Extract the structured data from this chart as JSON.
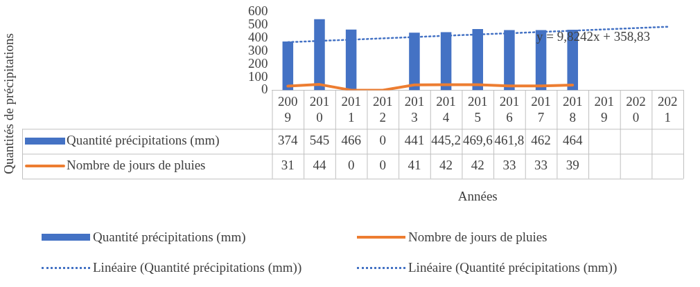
{
  "chart_data": {
    "type": "bar",
    "xlabel": "Années",
    "categories": [
      "2009",
      "2010",
      "2011",
      "2012",
      "2013",
      "2014",
      "2015",
      "2016",
      "2017",
      "2018",
      "2019",
      "2020",
      "2021"
    ],
    "series": [
      {
        "name": "Quantité précipitations (mm)",
        "color": "#4472c4",
        "values": [
          374,
          545,
          466,
          0,
          441,
          445.2,
          469.6,
          461.8,
          462,
          464,
          null,
          null,
          null
        ],
        "value_labels": [
          "374",
          "545",
          "466",
          "0",
          "441",
          "445,2",
          "469,6",
          "461,8",
          "462",
          "464",
          null,
          null,
          null
        ]
      },
      {
        "name": "Nombre de jours de pluies",
        "type": "line",
        "color": "#ed7d31",
        "line_style": "solid",
        "values": [
          31,
          44,
          0,
          0,
          41,
          42,
          42,
          33,
          33,
          39,
          null,
          null,
          null
        ],
        "value_labels": [
          "31",
          "44",
          "0",
          "0",
          "41",
          "42",
          "42",
          "33",
          "33",
          "39",
          null,
          null,
          null
        ]
      },
      {
        "name": "Linéaire (Quantité précipitations (mm))",
        "type": "line",
        "color": "#4472c4",
        "line_style": "dotted",
        "values": [
          369,
          378,
          388,
          398,
          408,
          418,
          428,
          437,
          447,
          457,
          467,
          477,
          487
        ]
      },
      {
        "name": "Linéaire (Quantité précipitations (mm))",
        "type": "line",
        "color": "#4472c4",
        "line_style": "dotted",
        "values": [
          null,
          null,
          null,
          null,
          null,
          null,
          null,
          null,
          null,
          null,
          null,
          null,
          null
        ]
      }
    ],
    "annotations": [
      "y = 9,8242x + 358,83",
      "Quantités de précipitations"
    ],
    "ylim": [
      0,
      600
    ],
    "yticks": [
      0,
      100,
      200,
      300,
      400,
      500,
      600
    ],
    "grid": false,
    "legend": "bottom",
    "marker": "none"
  }
}
